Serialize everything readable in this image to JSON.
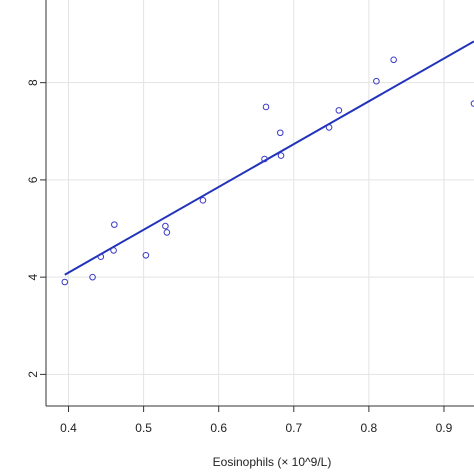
{
  "chart_data": {
    "type": "scatter",
    "title": "",
    "xlabel": "Eosinophils (× 10^9/L)",
    "ylabel": "",
    "xlim": [
      0.37,
      0.94
    ],
    "ylim": [
      1.35,
      9.7
    ],
    "grid": true,
    "x_ticks": [
      0.4,
      0.5,
      0.6,
      0.7,
      0.8,
      0.9
    ],
    "x_tick_labels": [
      "0.4",
      "0.5",
      "0.6",
      "0.7",
      "0.8",
      "0.9"
    ],
    "y_ticks": [
      2,
      4,
      6,
      8
    ],
    "y_tick_labels": [
      "2",
      "4",
      "6",
      "8"
    ],
    "series": [
      {
        "marker": "open-circle",
        "color": "#3a3ac8",
        "points": [
          {
            "x": 0.395,
            "y": 3.9
          },
          {
            "x": 0.432,
            "y": 4.0
          },
          {
            "x": 0.443,
            "y": 4.42
          },
          {
            "x": 0.46,
            "y": 4.55
          },
          {
            "x": 0.461,
            "y": 5.08
          },
          {
            "x": 0.503,
            "y": 4.45
          },
          {
            "x": 0.529,
            "y": 5.05
          },
          {
            "x": 0.531,
            "y": 4.92
          },
          {
            "x": 0.579,
            "y": 5.58
          },
          {
            "x": 0.661,
            "y": 6.43
          },
          {
            "x": 0.663,
            "y": 7.5
          },
          {
            "x": 0.682,
            "y": 6.97
          },
          {
            "x": 0.683,
            "y": 6.5
          },
          {
            "x": 0.747,
            "y": 7.08
          },
          {
            "x": 0.76,
            "y": 7.43
          },
          {
            "x": 0.81,
            "y": 8.03
          },
          {
            "x": 0.833,
            "y": 8.47
          },
          {
            "x": 0.94,
            "y": 7.57
          }
        ]
      }
    ],
    "fit_line": {
      "type": "linear",
      "color": "#2233bb",
      "x": [
        0.395,
        0.94
      ],
      "y": [
        4.05,
        8.85
      ]
    }
  }
}
